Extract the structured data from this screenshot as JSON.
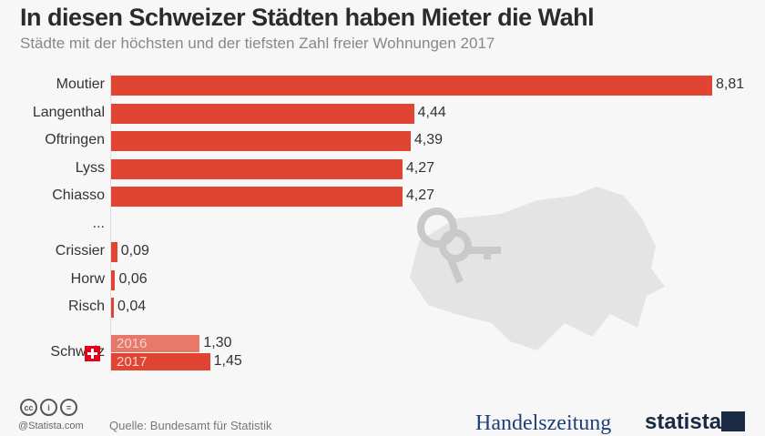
{
  "chart_data": {
    "type": "bar",
    "orientation": "horizontal",
    "title": "In diesen Schweizer Städten haben Mieter die Wahl",
    "subtitle": "Städte mit der höchsten und der tiefsten Zahl freier Wohnungen 2017",
    "categories": [
      "Moutier",
      "Langenthal",
      "Oftringen",
      "Lyss",
      "Chiasso",
      "...",
      "Crissier",
      "Horw",
      "Risch"
    ],
    "values": [
      8.81,
      4.44,
      4.39,
      4.27,
      4.27,
      null,
      0.09,
      0.06,
      0.04
    ],
    "labels": [
      "8,81",
      "4,44",
      "4,39",
      "4,27",
      "4,27",
      "",
      "0,09",
      "0,06",
      "0,04"
    ],
    "comparison": {
      "category": "Schweiz",
      "series": [
        {
          "name": "2016",
          "value": 1.3,
          "label": "1,30",
          "color": "#e8786a"
        },
        {
          "name": "2017",
          "value": 1.45,
          "label": "1,45",
          "color": "#e04433"
        }
      ]
    },
    "bar_color": "#e04433",
    "grid": false
  },
  "footer": {
    "copyright": "@Statista.com",
    "source": "Quelle: Bundesamt für Statistik",
    "partner_logo": "Handelszeitung",
    "brand_logo": "statista"
  }
}
